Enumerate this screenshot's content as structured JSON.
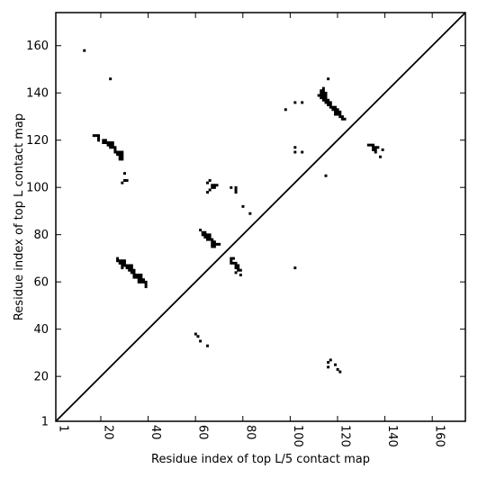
{
  "chart_data": {
    "type": "heatmap",
    "title": "",
    "xlabel": "Residue index of top L/5 contact map",
    "ylabel": "Residue index of top L contact map",
    "xlim": [
      1,
      174
    ],
    "ylim": [
      1,
      174
    ],
    "x_ticks": [
      1,
      20,
      40,
      60,
      80,
      100,
      120,
      140,
      160
    ],
    "y_ticks": [
      1,
      20,
      40,
      60,
      80,
      100,
      120,
      140,
      160
    ],
    "x_tick_rotation": "vertical",
    "grid": false,
    "legend": "none",
    "diagonal_line": true,
    "colors": {
      "background": "#ffffff",
      "contact": "#000000",
      "line": "#000000"
    },
    "contacts": [
      [
        13,
        158
      ],
      [
        24,
        146
      ],
      [
        17,
        122
      ],
      [
        18,
        122
      ],
      [
        19,
        122
      ],
      [
        19,
        121
      ],
      [
        19,
        120
      ],
      [
        21,
        120
      ],
      [
        22,
        120
      ],
      [
        21,
        119
      ],
      [
        22,
        119
      ],
      [
        23,
        119
      ],
      [
        24,
        119
      ],
      [
        25,
        119
      ],
      [
        23,
        118
      ],
      [
        24,
        118
      ],
      [
        25,
        118
      ],
      [
        24,
        117
      ],
      [
        25,
        117
      ],
      [
        26,
        117
      ],
      [
        26,
        116
      ],
      [
        26,
        115
      ],
      [
        27,
        115
      ],
      [
        28,
        115
      ],
      [
        29,
        115
      ],
      [
        27,
        114
      ],
      [
        28,
        114
      ],
      [
        29,
        114
      ],
      [
        28,
        113
      ],
      [
        29,
        113
      ],
      [
        28,
        112
      ],
      [
        29,
        112
      ],
      [
        30,
        106
      ],
      [
        30,
        103
      ],
      [
        31,
        103
      ],
      [
        29,
        102
      ],
      [
        114,
        142
      ],
      [
        113,
        141
      ],
      [
        114,
        141
      ],
      [
        113,
        140
      ],
      [
        114,
        140
      ],
      [
        115,
        140
      ],
      [
        112,
        139
      ],
      [
        113,
        139
      ],
      [
        114,
        139
      ],
      [
        115,
        139
      ],
      [
        113,
        138
      ],
      [
        114,
        138
      ],
      [
        115,
        138
      ],
      [
        114,
        137
      ],
      [
        115,
        137
      ],
      [
        116,
        137
      ],
      [
        115,
        136
      ],
      [
        116,
        136
      ],
      [
        117,
        136
      ],
      [
        116,
        135
      ],
      [
        117,
        135
      ],
      [
        117,
        134
      ],
      [
        118,
        134
      ],
      [
        119,
        134
      ],
      [
        118,
        133
      ],
      [
        119,
        133
      ],
      [
        120,
        133
      ],
      [
        119,
        132
      ],
      [
        120,
        132
      ],
      [
        121,
        132
      ],
      [
        119,
        131
      ],
      [
        120,
        131
      ],
      [
        121,
        131
      ],
      [
        121,
        130
      ],
      [
        122,
        130
      ],
      [
        122,
        129
      ],
      [
        123,
        129
      ],
      [
        116,
        146
      ],
      [
        98,
        133
      ],
      [
        102,
        136
      ],
      [
        105,
        136
      ],
      [
        102,
        117
      ],
      [
        102,
        115
      ],
      [
        105,
        115
      ],
      [
        115,
        105
      ],
      [
        133,
        118
      ],
      [
        134,
        118
      ],
      [
        135,
        118
      ],
      [
        135,
        117
      ],
      [
        136,
        117
      ],
      [
        137,
        117
      ],
      [
        135,
        116
      ],
      [
        136,
        116
      ],
      [
        139,
        116
      ],
      [
        136,
        115
      ],
      [
        138,
        113
      ],
      [
        66,
        103
      ],
      [
        65,
        102
      ],
      [
        67,
        101
      ],
      [
        68,
        101
      ],
      [
        69,
        101
      ],
      [
        67,
        100
      ],
      [
        68,
        100
      ],
      [
        66,
        99
      ],
      [
        65,
        98
      ],
      [
        75,
        100
      ],
      [
        77,
        100
      ],
      [
        77,
        99
      ],
      [
        77,
        98
      ],
      [
        80,
        92
      ],
      [
        83,
        89
      ],
      [
        62,
        82
      ],
      [
        63,
        81
      ],
      [
        64,
        81
      ],
      [
        63,
        80
      ],
      [
        64,
        80
      ],
      [
        65,
        80
      ],
      [
        66,
        80
      ],
      [
        64,
        79
      ],
      [
        65,
        79
      ],
      [
        66,
        79
      ],
      [
        65,
        78
      ],
      [
        66,
        78
      ],
      [
        67,
        78
      ],
      [
        67,
        77
      ],
      [
        68,
        77
      ],
      [
        67,
        76
      ],
      [
        68,
        76
      ],
      [
        69,
        76
      ],
      [
        70,
        76
      ],
      [
        67,
        75
      ],
      [
        68,
        75
      ],
      [
        75,
        70
      ],
      [
        76,
        70
      ],
      [
        75,
        69
      ],
      [
        75,
        68
      ],
      [
        76,
        68
      ],
      [
        77,
        68
      ],
      [
        77,
        67
      ],
      [
        78,
        67
      ],
      [
        77,
        66
      ],
      [
        78,
        66
      ],
      [
        78,
        65
      ],
      [
        79,
        65
      ],
      [
        77,
        64
      ],
      [
        79,
        63
      ],
      [
        102,
        66
      ],
      [
        27,
        70
      ],
      [
        27,
        69
      ],
      [
        28,
        69
      ],
      [
        29,
        69
      ],
      [
        30,
        69
      ],
      [
        28,
        68
      ],
      [
        29,
        68
      ],
      [
        30,
        68
      ],
      [
        29,
        67
      ],
      [
        30,
        67
      ],
      [
        31,
        67
      ],
      [
        32,
        67
      ],
      [
        33,
        67
      ],
      [
        29,
        66
      ],
      [
        31,
        66
      ],
      [
        32,
        66
      ],
      [
        33,
        66
      ],
      [
        32,
        65
      ],
      [
        33,
        65
      ],
      [
        34,
        65
      ],
      [
        33,
        64
      ],
      [
        34,
        64
      ],
      [
        34,
        63
      ],
      [
        35,
        63
      ],
      [
        36,
        63
      ],
      [
        37,
        63
      ],
      [
        34,
        62
      ],
      [
        35,
        62
      ],
      [
        36,
        62
      ],
      [
        37,
        62
      ],
      [
        36,
        61
      ],
      [
        37,
        61
      ],
      [
        38,
        61
      ],
      [
        36,
        60
      ],
      [
        37,
        60
      ],
      [
        38,
        60
      ],
      [
        39,
        60
      ],
      [
        39,
        59
      ],
      [
        39,
        58
      ],
      [
        60,
        38
      ],
      [
        61,
        37
      ],
      [
        62,
        35
      ],
      [
        65,
        33
      ],
      [
        117,
        27
      ],
      [
        116,
        26
      ],
      [
        119,
        25
      ],
      [
        116,
        24
      ],
      [
        120,
        23
      ],
      [
        121,
        22
      ]
    ]
  }
}
